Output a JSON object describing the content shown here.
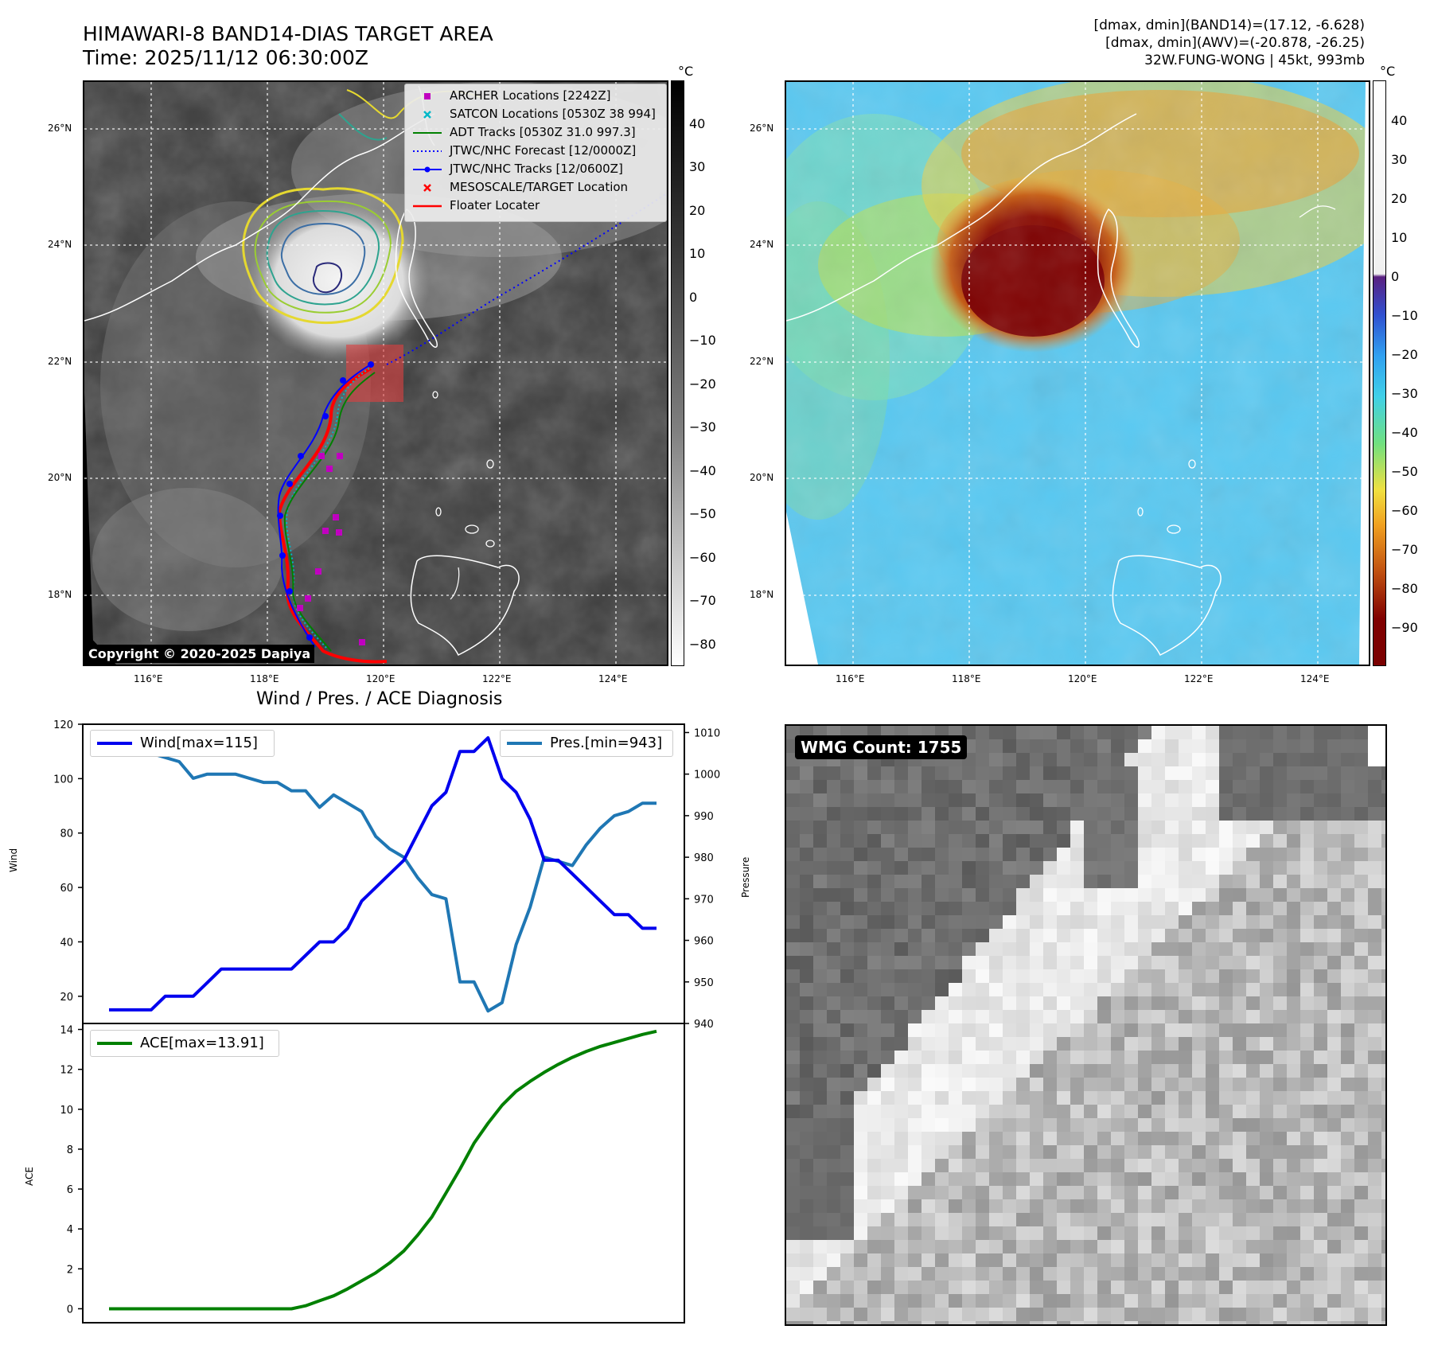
{
  "header": {
    "title_line1": "HIMAWARI-8 BAND14-DIAS TARGET AREA",
    "title_line2": "Time: 2025/11/12 06:30:00Z",
    "info_line1": "[dmax, dmin](BAND14)=(17.12, -6.628)",
    "info_line2": "[dmax, dmin](AWV)=(-20.878, -26.25)",
    "info_line3": "32W.FUNG-WONG | 45kt, 993mb"
  },
  "map": {
    "lat_labels": [
      "26°N",
      "24°N",
      "22°N",
      "20°N",
      "18°N"
    ],
    "lon_labels": [
      "116°E",
      "118°E",
      "120°E",
      "122°E",
      "124°E"
    ],
    "copyright": "Copyright © 2020-2025 Dapiya"
  },
  "ir_colorbar": {
    "unit": "°C",
    "ticks": [
      "40",
      "30",
      "20",
      "10",
      "0",
      "−10",
      "−20",
      "−30",
      "−40",
      "−50",
      "−60",
      "−70",
      "−80"
    ]
  },
  "awv_colorbar": {
    "unit": "°C",
    "ticks": [
      "40",
      "30",
      "20",
      "10",
      "0",
      "−10",
      "−20",
      "−30",
      "−40",
      "−50",
      "−60",
      "−70",
      "−80",
      "−90"
    ]
  },
  "legend": {
    "items": [
      {
        "label": "ARCHER Locations [2242Z]",
        "color": "#c000c0",
        "symbol": "square"
      },
      {
        "label": "SATCON Locations [0530Z 38 994]",
        "color": "#00b8c8",
        "symbol": "x"
      },
      {
        "label": "ADT Tracks [0530Z 31.0 997.3]",
        "color": "#008000",
        "symbol": "line"
      },
      {
        "label": "JTWC/NHC Forecast [12/0000Z]",
        "color": "#0000ff",
        "symbol": "dotted"
      },
      {
        "label": "JTWC/NHC Tracks [12/0600Z]",
        "color": "#0000ff",
        "symbol": "line-dot"
      },
      {
        "label": "MESOSCALE/TARGET Location",
        "color": "#ff0000",
        "symbol": "x"
      },
      {
        "label": "Floater Locater",
        "color": "#ff0000",
        "symbol": "line"
      }
    ]
  },
  "diagnosis": {
    "title": "Wind / Pres. / ACE Diagnosis",
    "wind_label": "Wind[max=115]",
    "pres_label": "Pres.[min=943]",
    "ace_label": "ACE[max=13.91]",
    "wind_axis": "Wind",
    "pres_axis": "Pressure",
    "ace_axis": "ACE"
  },
  "wmg": {
    "label": "WMG Count: 1755"
  },
  "colors": {
    "wind": "#0000ee",
    "pressure": "#1f77b4",
    "ace": "#008000"
  },
  "chart_data": [
    {
      "type": "line",
      "title": "Wind / Pres. / ACE Diagnosis",
      "xlabel": "",
      "ylabel": "Wind",
      "ylim": [
        10,
        120
      ],
      "yticks": [
        20,
        40,
        60,
        80,
        100,
        120
      ],
      "series": [
        {
          "name": "Wind[max=115]",
          "axis": "left",
          "color": "#0000ee",
          "values": [
            15,
            15,
            15,
            15,
            20,
            20,
            20,
            25,
            30,
            30,
            30,
            30,
            30,
            30,
            35,
            40,
            40,
            45,
            55,
            60,
            65,
            70,
            80,
            90,
            95,
            110,
            110,
            115,
            100,
            95,
            85,
            70,
            70,
            65,
            60,
            55,
            50,
            50,
            45,
            45
          ]
        }
      ]
    },
    {
      "type": "line",
      "ylabel": "Pressure",
      "ylim": [
        940,
        1012
      ],
      "yticks": [
        940,
        950,
        960,
        970,
        980,
        990,
        1000,
        1010
      ],
      "series": [
        {
          "name": "Pres.[min=943]",
          "axis": "right",
          "color": "#1f77b4",
          "values": [
            1008,
            1005,
            1005,
            1005,
            1004,
            1003,
            999,
            1000,
            1000,
            1000,
            999,
            998,
            998,
            996,
            996,
            992,
            995,
            993,
            991,
            985,
            982,
            980,
            975,
            971,
            970,
            950,
            950,
            943,
            945,
            959,
            968,
            980,
            979,
            978,
            983,
            987,
            990,
            991,
            993,
            993
          ]
        }
      ]
    },
    {
      "type": "line",
      "ylabel": "ACE",
      "ylim": [
        -0.7,
        14.3
      ],
      "yticks": [
        0,
        2,
        4,
        6,
        8,
        10,
        12,
        14
      ],
      "series": [
        {
          "name": "ACE[max=13.91]",
          "color": "#008000",
          "values": [
            0,
            0,
            0,
            0,
            0,
            0,
            0,
            0,
            0,
            0,
            0,
            0,
            0,
            0,
            0.15,
            0.4,
            0.65,
            1.0,
            1.4,
            1.8,
            2.3,
            2.9,
            3.7,
            4.6,
            5.8,
            7.0,
            8.3,
            9.3,
            10.2,
            10.9,
            11.4,
            11.85,
            12.25,
            12.6,
            12.9,
            13.15,
            13.35,
            13.55,
            13.75,
            13.91
          ]
        }
      ]
    }
  ]
}
